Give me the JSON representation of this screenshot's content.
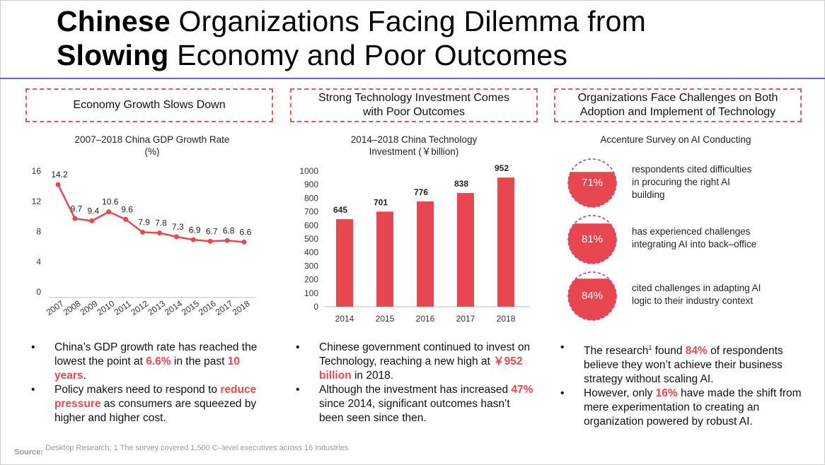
{
  "title": {
    "line1_bold": "Chinese",
    "line1_rest": " Organizations Facing Dilemma from",
    "line2_bold": "Slowing",
    "line2_rest": " Economy and Poor Outcomes"
  },
  "columns": [
    {
      "header": [
        "Economy Growth Slows Down"
      ],
      "subtitle": [
        "2007–2018 China GDP Growth Rate",
        "(%)"
      ],
      "bullets": [
        {
          "pre": "China’s GDP growth rate has reached the lowest the point at ",
          "hl1": "6.6%",
          "mid": " in the past ",
          "hl2": "10 years",
          "post": "."
        },
        {
          "pre": "Policy makers need to respond to ",
          "hl1": "reduce pressure",
          "mid": " as consumers are squeezed by higher and higher cost.",
          "hl2": "",
          "post": ""
        }
      ]
    },
    {
      "header": [
        "Strong Technology Investment Comes",
        "with Poor Outcomes"
      ],
      "subtitle": [
        "2014–2018 China Technology",
        "Investment (￥billion)"
      ],
      "bullets": [
        {
          "pre": "Chinese government continued to invest on Technology, reaching a new high at ",
          "hl1": "￥952 billion",
          "mid": " in 2018.",
          "hl2": "",
          "post": ""
        },
        {
          "pre": "Although the investment has increased ",
          "hl1": "47%",
          "mid": " since 2014, significant outcomes hasn’t been seen since then.",
          "hl2": "",
          "post": ""
        }
      ]
    },
    {
      "header": [
        "Organizations Face Challenges on Both",
        "Adoption and Implement of Technology"
      ],
      "subtitle": [
        "Accenture Survey on AI Conducting"
      ],
      "bullets": [
        {
          "pre": "The research",
          "sup": "1",
          "pre2": " found ",
          "hl1": "84%",
          "mid": " of respondents believe they won’t achieve their business strategy without scaling AI.",
          "hl2": "",
          "post": ""
        },
        {
          "pre": "However, only ",
          "hl1": "16%",
          "mid": " have made the shift from mere experimentation to creating an organization powered by robust AI.",
          "hl2": "",
          "post": ""
        }
      ]
    }
  ],
  "survey": [
    {
      "pct": "71%",
      "value": 71,
      "text": [
        "respondents cited difficulties",
        "in procuring the right AI",
        "building"
      ]
    },
    {
      "pct": "81%",
      "value": 81,
      "text": [
        "has experienced challenges",
        "integrating AI into back–office"
      ]
    },
    {
      "pct": "84%",
      "value": 84,
      "text": [
        "cited challenges in adapting AI",
        "logic to their industry context"
      ]
    }
  ],
  "source": {
    "label": "Source:",
    "text": "Desktop Research; 1 The survey covered 1,500 C–level executives across 16 industries"
  },
  "colors": {
    "accent": "#e8474f",
    "rule": "#6f5fb5",
    "dashed": "#e05a5a",
    "arc": "#8a3fb5"
  },
  "chart_data": [
    {
      "type": "line",
      "title": "2007–2018 China GDP Growth Rate (%)",
      "x": [
        "2007",
        "2008",
        "2009",
        "2010",
        "2011",
        "2012",
        "2013",
        "2014",
        "2015",
        "2016",
        "2017",
        "2018"
      ],
      "values": [
        14.2,
        9.7,
        9.4,
        10.6,
        9.6,
        7.9,
        7.8,
        7.3,
        6.9,
        6.7,
        6.8,
        6.6
      ],
      "labels": [
        "14.2",
        "9.7",
        "9.4",
        "10.6",
        "9.6",
        "7.9",
        "7.8",
        "7.3",
        "6.9",
        "6.7",
        "6.8",
        "6.6"
      ],
      "yticks": [
        "0",
        "4",
        "8",
        "12",
        "16"
      ],
      "ylim": [
        0,
        16
      ],
      "grid": false
    },
    {
      "type": "bar",
      "title": "2014–2018 China Technology Investment (￥billion)",
      "categories": [
        "2014",
        "2015",
        "2016",
        "2017",
        "2018"
      ],
      "values": [
        645,
        701,
        776,
        838,
        952
      ],
      "labels": [
        "645",
        "701",
        "776",
        "838",
        "952"
      ],
      "yticks": [
        "0",
        "100",
        "200",
        "300",
        "400",
        "500",
        "600",
        "700",
        "800",
        "900",
        "1000"
      ],
      "ylim": [
        0,
        1000
      ],
      "grid": false
    }
  ]
}
